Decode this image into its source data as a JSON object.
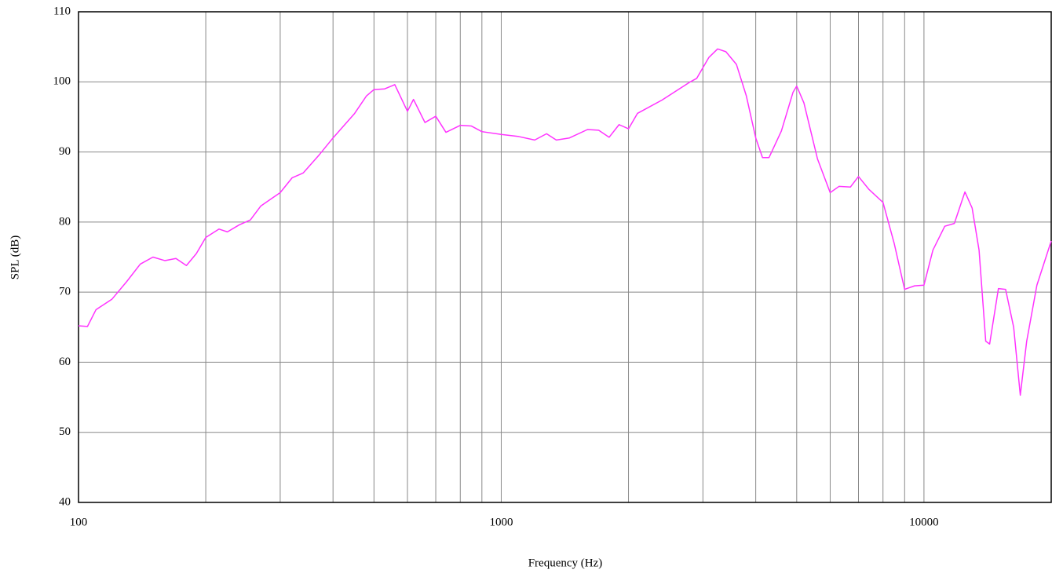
{
  "chart_data": {
    "type": "line",
    "x_label": "Frequency (Hz)",
    "y_label": "SPL (dB)",
    "log_x": true,
    "grid": true,
    "xlim": [
      100,
      20000
    ],
    "ylim": [
      40,
      110
    ],
    "xticks": [
      100,
      1000,
      10000
    ],
    "xminorticks": [
      200,
      300,
      400,
      500,
      600,
      700,
      800,
      900,
      2000,
      3000,
      4000,
      5000,
      6000,
      7000,
      8000,
      9000
    ],
    "yticks": [
      40,
      50,
      60,
      70,
      80,
      90,
      100,
      110
    ],
    "series": [
      {
        "color": "#ff33ff",
        "x": [
          100,
          105,
          110,
          120,
          130,
          140,
          150,
          160,
          170,
          180,
          190,
          200,
          215,
          225,
          240,
          255,
          270,
          300,
          320,
          340,
          370,
          400,
          450,
          480,
          500,
          530,
          560,
          600,
          620,
          660,
          700,
          740,
          800,
          850,
          900,
          1000,
          1100,
          1200,
          1280,
          1350,
          1450,
          1600,
          1700,
          1800,
          1900,
          2000,
          2100,
          2400,
          2800,
          2900,
          3100,
          3250,
          3400,
          3600,
          3800,
          4000,
          4150,
          4300,
          4600,
          4900,
          5000,
          5200,
          5600,
          6000,
          6300,
          6700,
          7000,
          7400,
          8000,
          8500,
          9000,
          9500,
          10000,
          10500,
          11200,
          11800,
          12500,
          13000,
          13500,
          14000,
          14300,
          15000,
          15600,
          16300,
          16900,
          17500,
          18500,
          20000
        ],
        "values": [
          65.2,
          65.1,
          67.5,
          69,
          71.5,
          74,
          75,
          74.5,
          74.8,
          73.8,
          75.5,
          77.8,
          79,
          78.6,
          79.6,
          80.3,
          82.3,
          84.2,
          86.3,
          87,
          89.5,
          92,
          95.5,
          98,
          98.9,
          99,
          99.6,
          95.8,
          97.5,
          94.2,
          95.1,
          92.8,
          93.8,
          93.7,
          92.9,
          92.5,
          92.2,
          91.7,
          92.6,
          91.7,
          92,
          93.2,
          93.1,
          92.1,
          93.9,
          93.3,
          95.5,
          97.4,
          100,
          100.5,
          103.5,
          104.7,
          104.3,
          102.5,
          98,
          92,
          89.2,
          89.2,
          93,
          98.5,
          99.4,
          97,
          89,
          84.2,
          85.1,
          85,
          86.5,
          84.7,
          82.8,
          77,
          70.4,
          70.9,
          71,
          76,
          79.4,
          79.8,
          84.3,
          82,
          76,
          63,
          62.6,
          70.5,
          70.4,
          65,
          55.3,
          63,
          71,
          77.3
        ]
      }
    ]
  }
}
